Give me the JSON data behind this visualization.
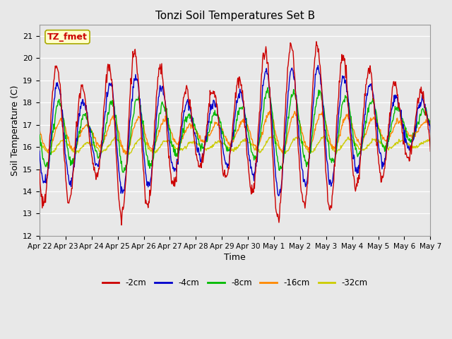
{
  "title": "Tonzi Soil Temperatures Set B",
  "xlabel": "Time",
  "ylabel": "Soil Temperature (C)",
  "ylim": [
    12.0,
    21.5
  ],
  "yticks": [
    12.0,
    13.0,
    14.0,
    15.0,
    16.0,
    17.0,
    18.0,
    19.0,
    20.0,
    21.0
  ],
  "colors": {
    "-2cm": "#cc0000",
    "-4cm": "#0000cc",
    "-8cm": "#00bb00",
    "-16cm": "#ff8800",
    "-32cm": "#cccc00"
  },
  "legend_label_box": "TZ_fmet",
  "legend_box_facecolor": "#ffffcc",
  "legend_box_edgecolor": "#aaaa00",
  "background_color": "#e8e8e8",
  "x_tick_labels": [
    "Apr 22",
    "Apr 23",
    "Apr 24",
    "Apr 25",
    "Apr 26",
    "Apr 27",
    "Apr 28",
    "Apr 29",
    "Apr 30",
    "May 1",
    "May 2",
    "May 3",
    "May 4",
    "May 5",
    "May 6",
    "May 7"
  ],
  "days": 15
}
